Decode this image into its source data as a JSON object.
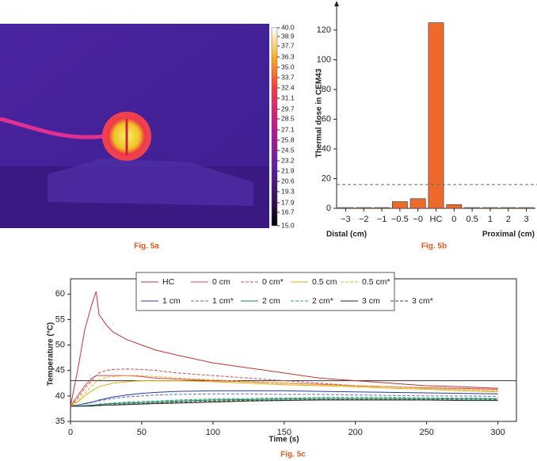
{
  "chart_data": [
    {
      "type": "thermal-image",
      "caption": "Fig. 5a",
      "clim": [
        15,
        40
      ],
      "cticks": [
        {
          "value": 40,
          "label": "40.0"
        },
        38.9,
        37.7,
        36.3,
        {
          "value": 35,
          "label": "35.0"
        },
        33.7,
        32.4,
        31.1,
        29.7,
        28.5,
        27.1,
        25.8,
        24.5,
        23.2,
        21.9,
        20.6,
        19.3,
        17.9,
        16.7,
        {
          "value": 15,
          "label": "15.0"
        }
      ]
    },
    {
      "type": "bar",
      "caption": "Fig. 5b",
      "ylabel": "Thermal dose in CEM43",
      "xlabel_left": "Distal (cm)",
      "xlabel_right": "Proximal (cm)",
      "categories": [
        "−3",
        "−2",
        "−1",
        "−0.5",
        "−0",
        "HC",
        "0",
        "0.5",
        "1",
        "2",
        "3"
      ],
      "values": [
        0.5,
        0.5,
        0.5,
        4.5,
        6.5,
        125,
        2.5,
        0.5,
        0.5,
        0.5,
        0.5
      ],
      "color": "#ee6a2c",
      "ylim": [
        0,
        128
      ],
      "yticks": [
        0,
        20,
        40,
        60,
        80,
        100,
        120
      ],
      "reference_line": 16
    },
    {
      "type": "line",
      "caption": "Fig. 5c",
      "xlabel": "Time (s)",
      "ylabel": "Temperature (°C)",
      "xlim": [
        0,
        313
      ],
      "ylim": [
        35,
        63
      ],
      "xticks": [
        0,
        50,
        100,
        150,
        200,
        250,
        300
      ],
      "yticks": [
        35,
        40,
        45,
        50,
        55,
        60
      ],
      "reference_line": 43,
      "x": [
        0,
        5,
        10,
        15,
        18,
        20,
        25,
        30,
        40,
        50,
        60,
        75,
        100,
        125,
        150,
        175,
        200,
        225,
        250,
        275,
        300
      ],
      "series": [
        {
          "name": "HC",
          "color": "#c83030",
          "dash": false,
          "values": [
            38,
            45,
            53,
            58,
            60.5,
            56,
            54,
            52.5,
            51,
            50,
            49,
            48,
            46.5,
            45.5,
            44.5,
            43.5,
            43,
            42.5,
            42,
            41.8,
            41.5
          ]
        },
        {
          "name": "0 cm",
          "color": "#e04848",
          "dash": false,
          "values": [
            38,
            40,
            42,
            43.5,
            44,
            44,
            44,
            44,
            44,
            43.8,
            43.5,
            43.3,
            43,
            42.8,
            42.5,
            42.3,
            42,
            41.8,
            41.6,
            41.5,
            41.3
          ]
        },
        {
          "name": "0 cm*",
          "color": "#d05050",
          "dash": true,
          "values": [
            38,
            39.5,
            41.5,
            43,
            44,
            44.5,
            45,
            45.2,
            45.3,
            45.2,
            45,
            44.5,
            44,
            43.5,
            43,
            42.5,
            42,
            41.8,
            41.5,
            41.3,
            41
          ]
        },
        {
          "name": "0.5 cm",
          "color": "#e0b000",
          "dash": false,
          "values": [
            38,
            38.8,
            40,
            41,
            41.5,
            41.8,
            42.2,
            42.5,
            42.8,
            43,
            43,
            43,
            42.8,
            42.5,
            42.2,
            42,
            41.8,
            41.5,
            41.3,
            41,
            40.8
          ]
        },
        {
          "name": "0.5 cm*",
          "color": "#e8b820",
          "dash": true,
          "values": [
            38,
            39,
            40.5,
            42,
            42.8,
            43.2,
            43.6,
            43.8,
            44,
            44,
            43.8,
            43.5,
            43.2,
            42.8,
            42.5,
            42.2,
            42,
            41.8,
            41.5,
            41.3,
            41
          ]
        },
        {
          "name": "1 cm",
          "color": "#2838a8",
          "dash": false,
          "values": [
            38,
            38.2,
            38.5,
            38.8,
            39,
            39.2,
            39.5,
            39.8,
            40.2,
            40.5,
            40.7,
            40.9,
            41,
            41,
            41,
            40.9,
            40.8,
            40.7,
            40.6,
            40.5,
            40.4
          ]
        },
        {
          "name": "1 cm*",
          "color": "#6070b8",
          "dash": true,
          "values": [
            38,
            38.2,
            38.4,
            38.7,
            38.9,
            39,
            39.3,
            39.5,
            39.8,
            40,
            40.2,
            40.3,
            40.4,
            40.4,
            40.3,
            40.3,
            40.2,
            40.1,
            40,
            40,
            39.9
          ]
        },
        {
          "name": "2 cm",
          "color": "#1a8a3a",
          "dash": false,
          "values": [
            38,
            38,
            38.1,
            38.2,
            38.2,
            38.3,
            38.4,
            38.5,
            38.6,
            38.7,
            38.8,
            39,
            39.2,
            39.3,
            39.4,
            39.5,
            39.5,
            39.5,
            39.5,
            39.4,
            39.4
          ]
        },
        {
          "name": "2 cm*",
          "color": "#20a0a0",
          "dash": true,
          "values": [
            38,
            38,
            38.1,
            38.2,
            38.3,
            38.4,
            38.5,
            38.6,
            38.8,
            38.9,
            39,
            39.2,
            39.4,
            39.5,
            39.6,
            39.7,
            39.7,
            39.7,
            39.6,
            39.6,
            39.5
          ]
        },
        {
          "name": "3 cm",
          "color": "#222222",
          "dash": false,
          "values": [
            38,
            38,
            38,
            38,
            38.1,
            38.1,
            38.2,
            38.2,
            38.3,
            38.4,
            38.5,
            38.6,
            38.8,
            39,
            39.1,
            39.2,
            39.2,
            39.2,
            39.2,
            39.1,
            39.1
          ]
        },
        {
          "name": "3 cm*",
          "color": "#444444",
          "dash": true,
          "values": [
            38,
            38,
            38,
            38.1,
            38.1,
            38.2,
            38.2,
            38.3,
            38.4,
            38.5,
            38.6,
            38.8,
            39,
            39.1,
            39.2,
            39.3,
            39.3,
            39.3,
            39.3,
            39.2,
            39.2
          ]
        }
      ]
    }
  ]
}
